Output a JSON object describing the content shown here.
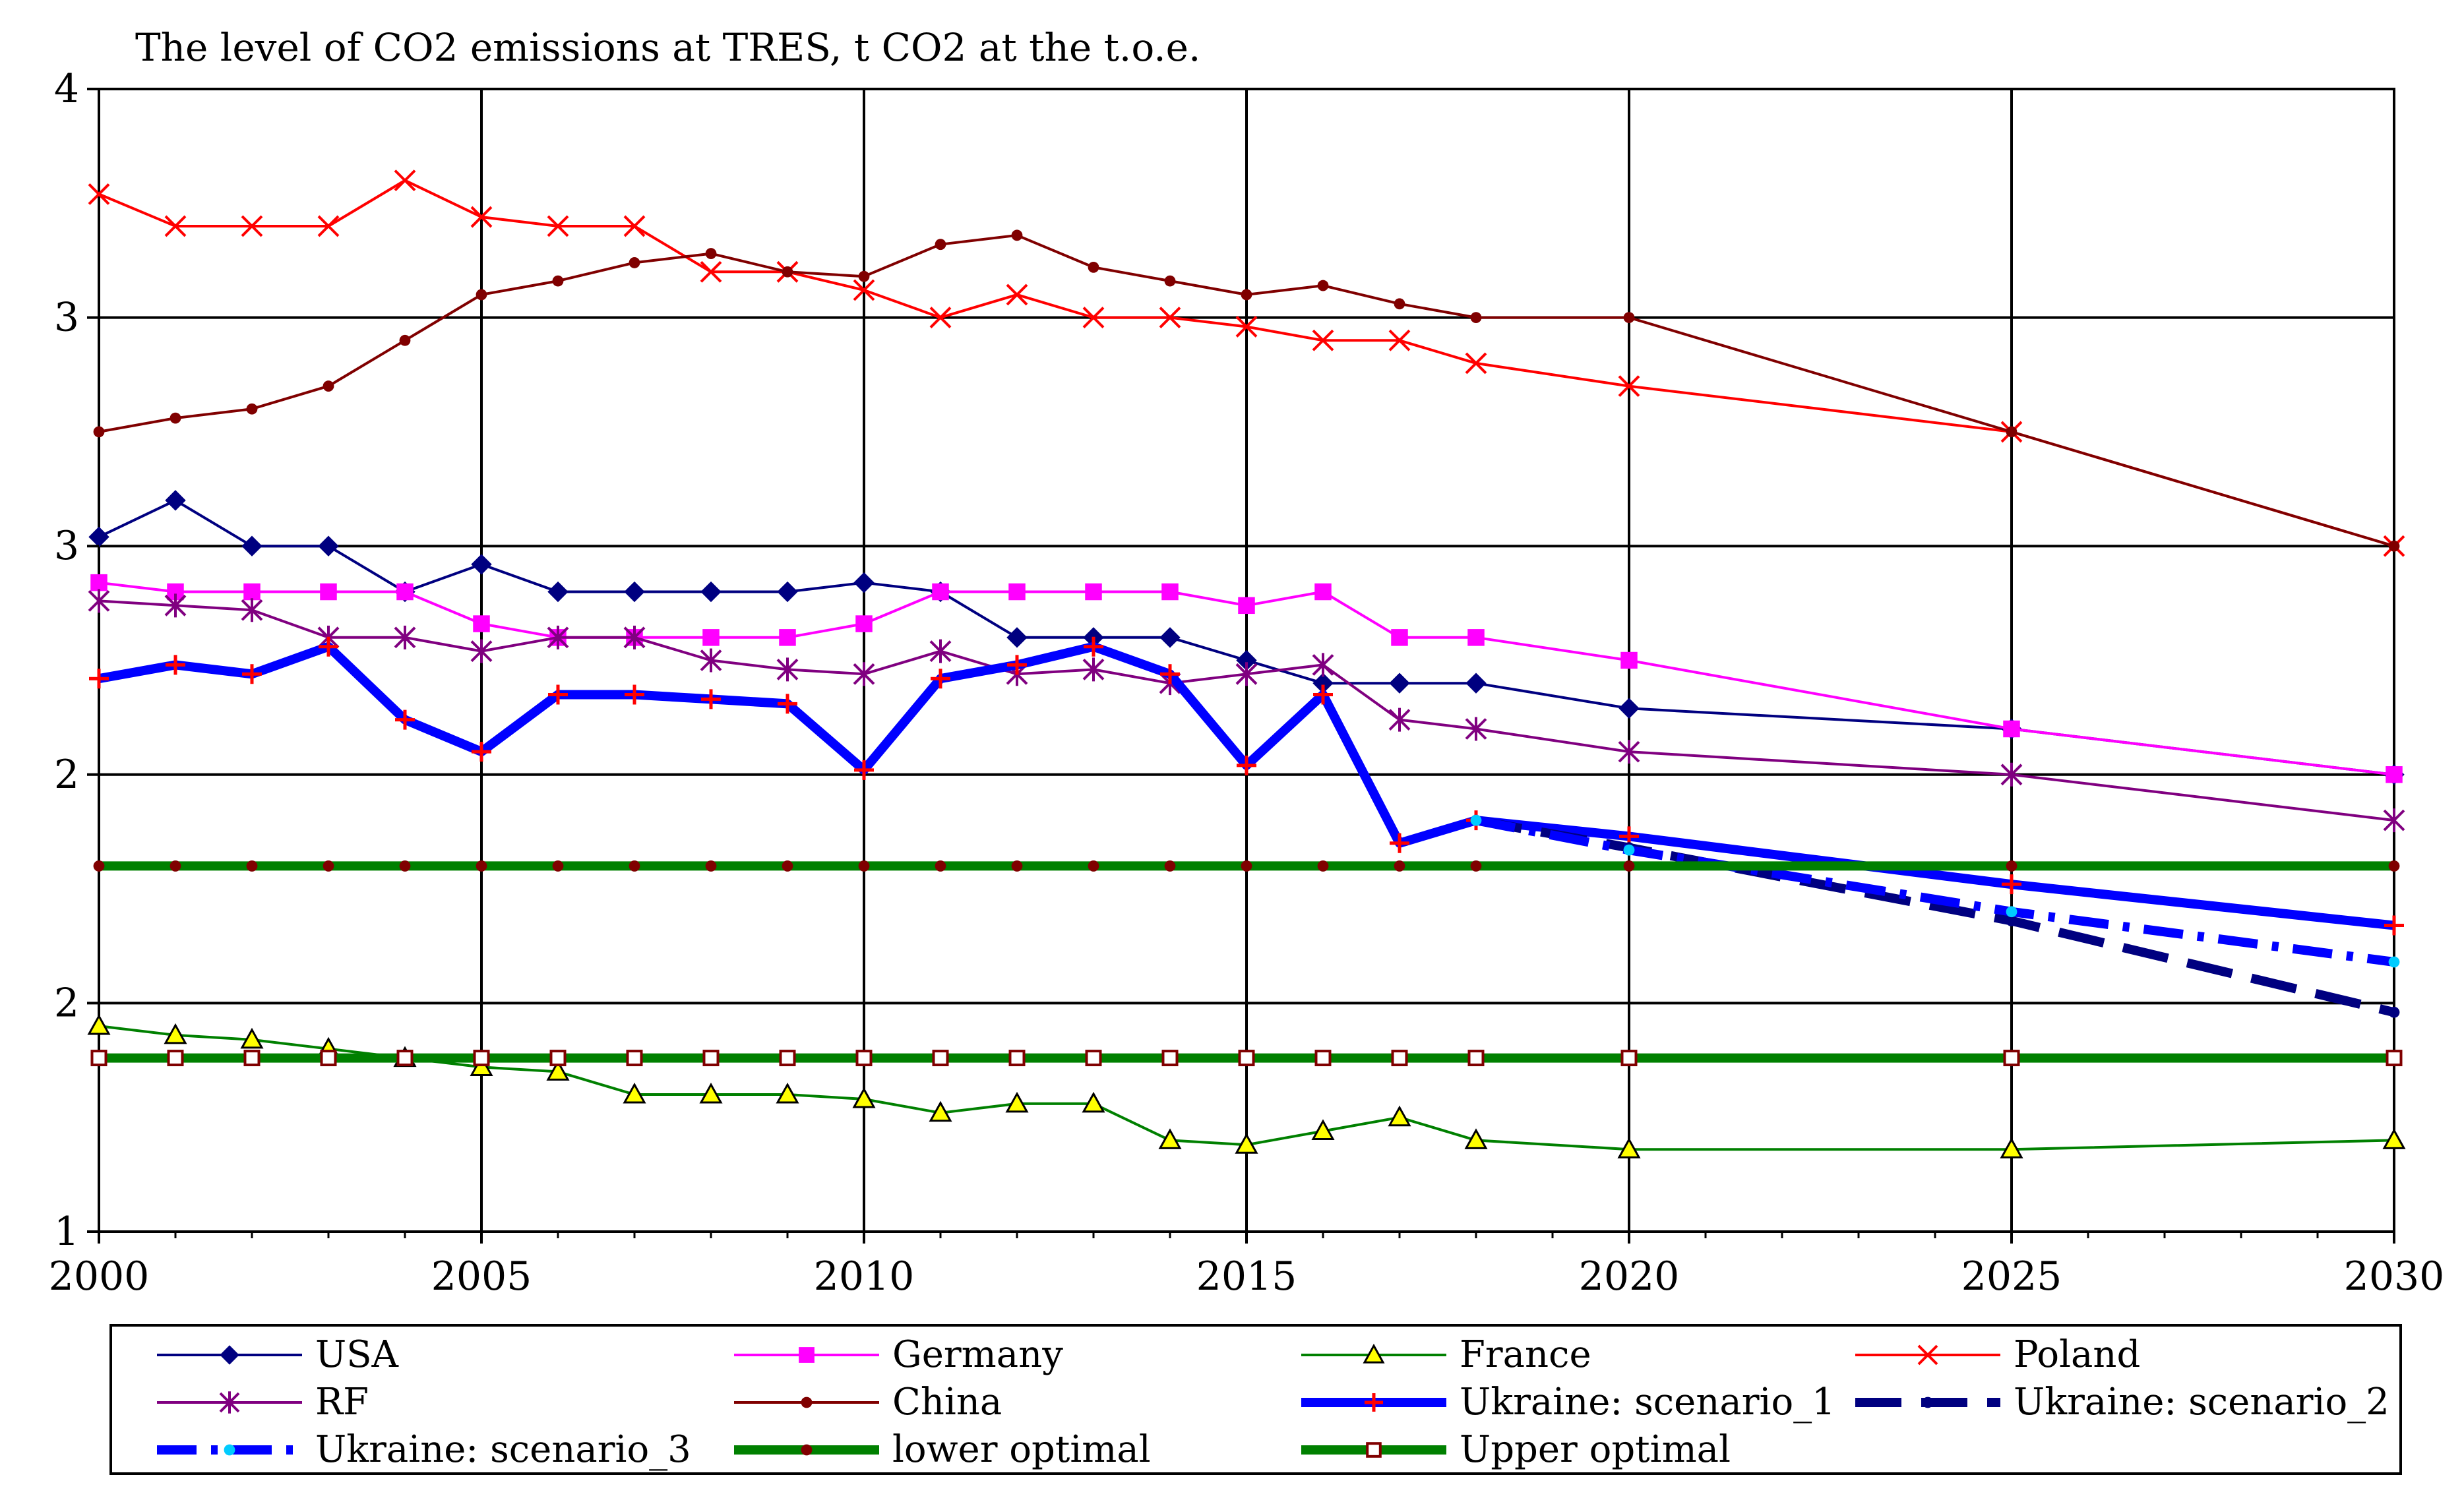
{
  "chart_data": {
    "type": "line",
    "title": "The level of CO2 emissions at TRES, t CO2 at the t.o.e.",
    "xlabel": "",
    "ylabel": "",
    "y_tick_labels": [
      "1",
      "2",
      "2",
      "3",
      "3",
      "4"
    ],
    "x_ticks": [
      2000,
      2005,
      2010,
      2015,
      2020,
      2025,
      2030
    ],
    "xlim": [
      2000,
      2030
    ],
    "ylim": [
      1.0,
      3.5
    ],
    "grid": true,
    "legend_position": "bottom",
    "categories": [
      "2000",
      "2001",
      "2002",
      "2003",
      "2004",
      "2005",
      "2006",
      "2007",
      "2008",
      "2009",
      "2010",
      "2011",
      "2012",
      "2013",
      "2014",
      "2015",
      "2016",
      "2017",
      "2018",
      "2020",
      "2025",
      "2030"
    ],
    "series": [
      {
        "name": "USA",
        "color": "#000080",
        "marker": "diamond",
        "style": "solid",
        "width": "thin",
        "x": [
          2000,
          2001,
          2002,
          2003,
          2004,
          2005,
          2006,
          2007,
          2008,
          2009,
          2010,
          2011,
          2012,
          2013,
          2014,
          2015,
          2016,
          2017,
          2018,
          2020,
          2025,
          2030
        ],
        "values": [
          2.52,
          2.6,
          2.5,
          2.5,
          2.4,
          2.46,
          2.4,
          2.4,
          2.4,
          2.4,
          2.42,
          2.4,
          2.3,
          2.3,
          2.3,
          2.25,
          2.2,
          2.2,
          2.2,
          2.145,
          2.1,
          2.0
        ]
      },
      {
        "name": "Germany",
        "color": "#ff00ff",
        "marker": "square",
        "style": "solid",
        "width": "thin",
        "x": [
          2000,
          2001,
          2002,
          2003,
          2004,
          2005,
          2006,
          2007,
          2008,
          2009,
          2010,
          2011,
          2012,
          2013,
          2014,
          2015,
          2016,
          2017,
          2018,
          2020,
          2025,
          2030
        ],
        "values": [
          2.42,
          2.4,
          2.4,
          2.4,
          2.4,
          2.33,
          2.3,
          2.3,
          2.3,
          2.3,
          2.33,
          2.4,
          2.4,
          2.4,
          2.4,
          2.37,
          2.4,
          2.3,
          2.3,
          2.25,
          2.1,
          2.0
        ]
      },
      {
        "name": "France",
        "color": "#008000",
        "marker": "triangle",
        "style": "solid",
        "width": "thin",
        "x": [
          2000,
          2001,
          2002,
          2003,
          2004,
          2005,
          2006,
          2007,
          2008,
          2009,
          2010,
          2011,
          2012,
          2013,
          2014,
          2015,
          2016,
          2017,
          2018,
          2020,
          2025,
          2030
        ],
        "values": [
          1.45,
          1.43,
          1.42,
          1.4,
          1.38,
          1.36,
          1.35,
          1.3,
          1.3,
          1.3,
          1.29,
          1.26,
          1.28,
          1.28,
          1.2,
          1.19,
          1.22,
          1.25,
          1.2,
          1.18,
          1.18,
          1.2
        ]
      },
      {
        "name": "Poland",
        "color": "#ff0000",
        "marker": "x",
        "style": "solid",
        "width": "thin",
        "x": [
          2000,
          2001,
          2002,
          2003,
          2004,
          2005,
          2006,
          2007,
          2008,
          2009,
          2010,
          2011,
          2012,
          2013,
          2014,
          2015,
          2016,
          2017,
          2018,
          2020,
          2025,
          2030
        ],
        "values": [
          3.27,
          3.2,
          3.2,
          3.2,
          3.3,
          3.22,
          3.2,
          3.2,
          3.1,
          3.1,
          3.06,
          3.0,
          3.05,
          3.0,
          3.0,
          2.98,
          2.95,
          2.95,
          2.9,
          2.85,
          2.75,
          2.5
        ]
      },
      {
        "name": "RF",
        "color": "#800080",
        "marker": "asterisk",
        "style": "solid",
        "width": "thin",
        "x": [
          2000,
          2001,
          2002,
          2003,
          2004,
          2005,
          2006,
          2007,
          2008,
          2009,
          2010,
          2011,
          2012,
          2013,
          2014,
          2015,
          2016,
          2017,
          2018,
          2020,
          2025,
          2030
        ],
        "values": [
          2.38,
          2.37,
          2.36,
          2.3,
          2.3,
          2.27,
          2.3,
          2.3,
          2.25,
          2.23,
          2.22,
          2.27,
          2.22,
          2.23,
          2.2,
          2.22,
          2.24,
          2.12,
          2.1,
          2.05,
          2.0,
          1.9
        ]
      },
      {
        "name": "China",
        "color": "#800000",
        "marker": "dot",
        "style": "solid",
        "width": "thin",
        "x": [
          2000,
          2001,
          2002,
          2003,
          2004,
          2005,
          2006,
          2007,
          2008,
          2009,
          2010,
          2011,
          2012,
          2013,
          2014,
          2015,
          2016,
          2017,
          2018,
          2020,
          2025,
          2030
        ],
        "values": [
          2.75,
          2.78,
          2.8,
          2.85,
          2.95,
          3.05,
          3.08,
          3.12,
          3.14,
          3.1,
          3.09,
          3.16,
          3.18,
          3.11,
          3.08,
          3.05,
          3.07,
          3.03,
          3.0,
          3.0,
          2.75,
          2.5
        ]
      },
      {
        "name": "Ukraine: scenario_1",
        "color": "#0000ff",
        "marker": "plus",
        "marker_color": "#ff0000",
        "style": "solid",
        "width": "thick",
        "x": [
          2000,
          2001,
          2002,
          2003,
          2004,
          2005,
          2006,
          2007,
          2008,
          2009,
          2010,
          2011,
          2012,
          2013,
          2014,
          2015,
          2016,
          2017,
          2018,
          2020,
          2025,
          2030
        ],
        "values": [
          2.21,
          2.24,
          2.22,
          2.28,
          2.12,
          2.05,
          2.175,
          2.175,
          2.165,
          2.155,
          2.01,
          2.21,
          2.24,
          2.28,
          2.22,
          2.02,
          2.175,
          1.85,
          1.9,
          1.865,
          1.76,
          1.67
        ]
      },
      {
        "name": "Ukraine: scenario_2",
        "color": "#000080",
        "marker": "dot",
        "style": "dash",
        "width": "thick",
        "x": [
          2018,
          2020,
          2025,
          2030
        ],
        "values": [
          1.9,
          1.84,
          1.68,
          1.48
        ]
      },
      {
        "name": "Ukraine: scenario_3",
        "color": "#0000ff",
        "marker": "dot",
        "marker_color": "#00ccff",
        "style": "dashdot",
        "width": "thick",
        "x": [
          2018,
          2020,
          2025,
          2030
        ],
        "values": [
          1.9,
          1.835,
          1.7,
          1.59
        ]
      },
      {
        "name": "lower optimal",
        "color": "#008000",
        "marker": "dot",
        "marker_color": "#800000",
        "style": "solid",
        "width": "thick",
        "x": [
          2000,
          2001,
          2002,
          2003,
          2004,
          2005,
          2006,
          2007,
          2008,
          2009,
          2010,
          2011,
          2012,
          2013,
          2014,
          2015,
          2016,
          2017,
          2018,
          2020,
          2025,
          2030
        ],
        "values": [
          1.8,
          1.8,
          1.8,
          1.8,
          1.8,
          1.8,
          1.8,
          1.8,
          1.8,
          1.8,
          1.8,
          1.8,
          1.8,
          1.8,
          1.8,
          1.8,
          1.8,
          1.8,
          1.8,
          1.8,
          1.8,
          1.8
        ]
      },
      {
        "name": "Upper optimal",
        "color": "#008000",
        "marker": "square-open",
        "marker_color": "#800000",
        "style": "solid",
        "width": "thick",
        "x": [
          2000,
          2001,
          2002,
          2003,
          2004,
          2005,
          2006,
          2007,
          2008,
          2009,
          2010,
          2011,
          2012,
          2013,
          2014,
          2015,
          2016,
          2017,
          2018,
          2020,
          2025,
          2030
        ],
        "values": [
          1.38,
          1.38,
          1.38,
          1.38,
          1.38,
          1.38,
          1.38,
          1.38,
          1.38,
          1.38,
          1.38,
          1.38,
          1.38,
          1.38,
          1.38,
          1.38,
          1.38,
          1.38,
          1.38,
          1.38,
          1.38,
          1.38
        ]
      }
    ]
  }
}
